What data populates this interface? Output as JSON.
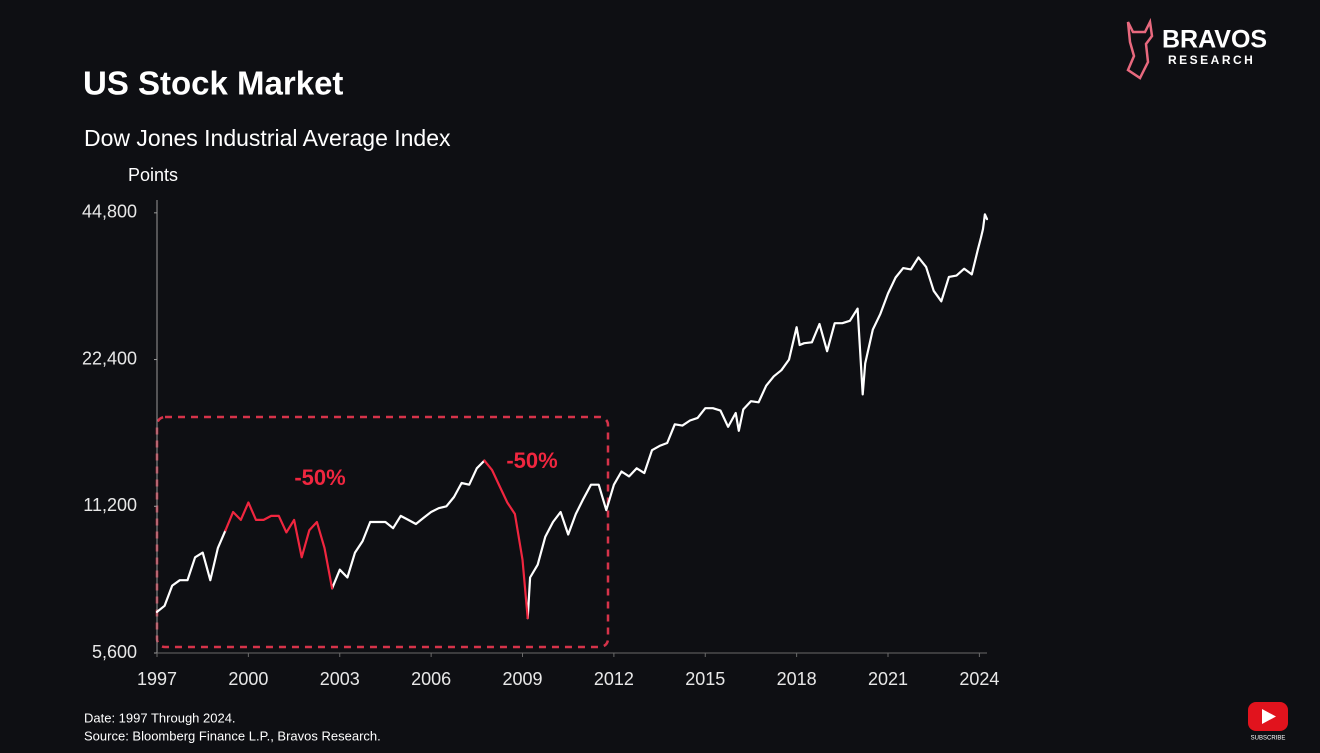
{
  "chart_data": {
    "type": "line",
    "title": "US Stock Market",
    "subtitle": "Dow Jones Industrial Average Index",
    "y_label": "Points",
    "notes": [
      "Date: 1997 Through 2024.",
      "Source: Bloomberg Finance L.P., Bravos Research."
    ],
    "annotations": [
      {
        "text": "-50%"
      },
      {
        "text": "-50%"
      }
    ],
    "log_y": true,
    "grid": false,
    "xlim": [
      1997,
      2024.25
    ],
    "xticks": [
      1997,
      2000,
      2003,
      2006,
      2009,
      2012,
      2015,
      2018,
      2021,
      2024
    ],
    "ylim": [
      5600,
      47600
    ],
    "yticks": [
      {
        "value": 5600,
        "label": "5,600"
      },
      {
        "value": 11200,
        "label": "11,200"
      },
      {
        "value": 22400,
        "label": "22,400"
      },
      {
        "value": 44800,
        "label": "44,800"
      }
    ],
    "x": [
      1997,
      1997.25,
      1997.5,
      1997.75,
      1998,
      1998.25,
      1998.5,
      1998.75,
      1999,
      1999.25,
      1999.5,
      1999.75,
      2000,
      2000.25,
      2000.5,
      2000.75,
      2001,
      2001.25,
      2001.5,
      2001.75,
      2002,
      2002.25,
      2002.5,
      2002.75,
      2003,
      2003.25,
      2003.5,
      2003.75,
      2004,
      2004.25,
      2004.5,
      2004.75,
      2005,
      2005.25,
      2005.5,
      2005.75,
      2006,
      2006.25,
      2006.5,
      2006.75,
      2007,
      2007.25,
      2007.5,
      2007.75,
      2008,
      2008.25,
      2008.5,
      2008.75,
      2009,
      2009.17,
      2009.25,
      2009.5,
      2009.75,
      2010,
      2010.25,
      2010.5,
      2010.75,
      2011,
      2011.25,
      2011.5,
      2011.75,
      2012,
      2012.25,
      2012.5,
      2012.75,
      2013,
      2013.25,
      2013.5,
      2013.75,
      2014,
      2014.25,
      2014.5,
      2014.75,
      2015,
      2015.25,
      2015.5,
      2015.75,
      2016,
      2016.1,
      2016.25,
      2016.5,
      2016.75,
      2017,
      2017.25,
      2017.5,
      2017.75,
      2018,
      2018.1,
      2018.25,
      2018.5,
      2018.75,
      2019,
      2019.25,
      2019.5,
      2019.75,
      2020,
      2020.17,
      2020.25,
      2020.5,
      2020.75,
      2021,
      2021.25,
      2021.5,
      2021.75,
      2022,
      2022.25,
      2022.5,
      2022.75,
      2023,
      2023.25,
      2023.5,
      2023.75,
      2023.95,
      2024.05,
      2024.12,
      2024.18,
      2024.25
    ],
    "series": [
      {
        "color": "#ffffff",
        "values": [
          6800,
          7000,
          7700,
          7900,
          7900,
          8800,
          9000,
          7900,
          9200,
          10000,
          null,
          null,
          null,
          null,
          null,
          null,
          null,
          null,
          null,
          null,
          null,
          null,
          null,
          7600,
          8300,
          8000,
          9000,
          9500,
          10400,
          10400,
          10400,
          10100,
          10700,
          10500,
          10300,
          10600,
          10900,
          11100,
          11200,
          11700,
          12500,
          12400,
          13400,
          13900,
          null,
          null,
          null,
          null,
          null,
          6600,
          8000,
          8500,
          9700,
          10400,
          10900,
          9800,
          10800,
          11600,
          12400,
          12400,
          11000,
          12400,
          13200,
          12900,
          13400,
          13100,
          14600,
          14900,
          15100,
          16500,
          16400,
          16800,
          17000,
          17800,
          17800,
          17600,
          16300,
          17400,
          16000,
          17700,
          18400,
          18300,
          19800,
          20700,
          21300,
          22400,
          26100,
          24000,
          24200,
          24300,
          26500,
          23300,
          26600,
          26600,
          26900,
          28500,
          19000,
          22000,
          25800,
          27800,
          30600,
          33000,
          34500,
          34300,
          36300,
          34700,
          31000,
          29500,
          33100,
          33300,
          34400,
          33500,
          37700,
          39800,
          41500,
          44500,
          43500
        ]
      },
      {
        "color": "#f0263f",
        "values": [
          null,
          null,
          null,
          null,
          null,
          null,
          null,
          null,
          null,
          10000,
          10900,
          10500,
          11400,
          10500,
          10500,
          10700,
          10700,
          9900,
          10500,
          8800,
          10000,
          10400,
          9200,
          7600,
          null,
          null,
          null,
          null,
          null,
          null,
          null,
          null,
          null,
          null,
          null,
          null,
          null,
          null,
          null,
          null,
          null,
          null,
          null,
          13900,
          13300,
          12300,
          11400,
          10800,
          8700,
          6600,
          null,
          null,
          null,
          null,
          null,
          null,
          null,
          null,
          null,
          null,
          null,
          null,
          null,
          null,
          null,
          null,
          null,
          null,
          null,
          null,
          null,
          null,
          null,
          null,
          null,
          null,
          null,
          null,
          null,
          null,
          null,
          null,
          null,
          null,
          null,
          null,
          null,
          null,
          null,
          null,
          null,
          null,
          null,
          null,
          null,
          null,
          null,
          null,
          null,
          null,
          null,
          null,
          null,
          null,
          null,
          null,
          null,
          null,
          null,
          null,
          null,
          null,
          null,
          null,
          null,
          null,
          null
        ]
      }
    ]
  },
  "logo": {
    "name": "BRAVOS",
    "tagline": "RESEARCH"
  },
  "overlay": {
    "button": "SUBSCRIBE"
  }
}
